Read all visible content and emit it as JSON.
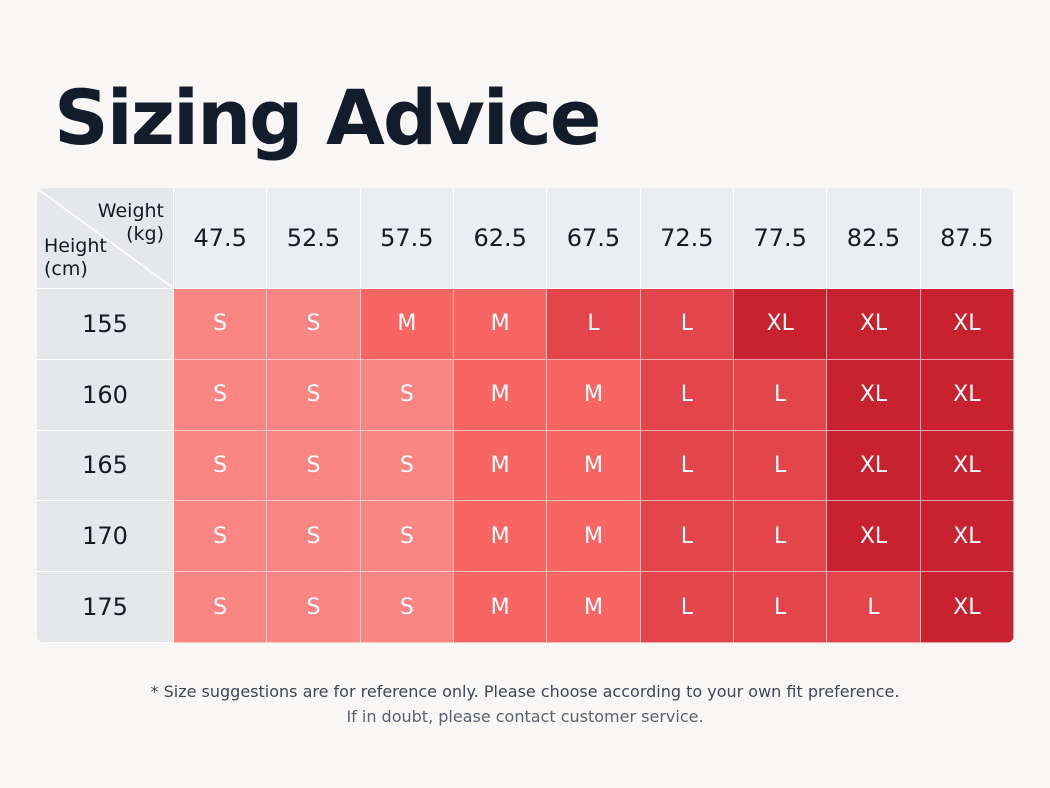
{
  "title": "Sizing Advice",
  "table": {
    "corner": {
      "weight_label": "Weight",
      "weight_unit": "(kg)",
      "height_label": "Height",
      "height_unit": "(cm)"
    },
    "weights": [
      "47.5",
      "52.5",
      "57.5",
      "62.5",
      "67.5",
      "72.5",
      "77.5",
      "82.5",
      "87.5"
    ],
    "heights": [
      "155",
      "160",
      "165",
      "170",
      "175"
    ],
    "sizes": [
      [
        "S",
        "S",
        "M",
        "M",
        "L",
        "L",
        "XL",
        "XL",
        "XL"
      ],
      [
        "S",
        "S",
        "S",
        "M",
        "M",
        "L",
        "L",
        "XL",
        "XL"
      ],
      [
        "S",
        "S",
        "S",
        "M",
        "M",
        "L",
        "L",
        "XL",
        "XL"
      ],
      [
        "S",
        "S",
        "S",
        "M",
        "M",
        "L",
        "L",
        "XL",
        "XL"
      ],
      [
        "S",
        "S",
        "S",
        "M",
        "M",
        "L",
        "L",
        "L",
        "XL"
      ]
    ],
    "size_colors": {
      "S": "#f98683",
      "M": "#f76663",
      "L": "#e2454b",
      "XL": "#c8212f"
    }
  },
  "footnote": {
    "line1": "* Size suggestions are for reference only. Please choose according to your own fit preference.",
    "line2": "If in doubt, please contact customer service."
  }
}
